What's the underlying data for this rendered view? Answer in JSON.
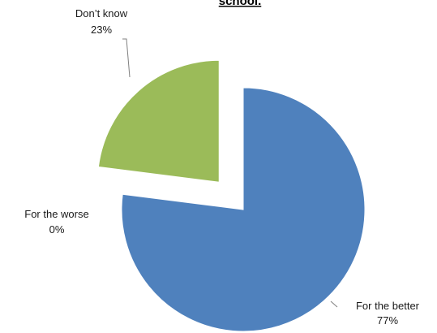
{
  "chart_data": {
    "type": "pie",
    "title": "school.",
    "slices": [
      {
        "label": "For the better",
        "value": 77,
        "value_label": "77%",
        "color": "#4f81bd",
        "exploded": true
      },
      {
        "label": "For the worse",
        "value": 0,
        "value_label": "0%",
        "color": "#c0504d",
        "exploded": true
      },
      {
        "label": "Don’t know",
        "value": 23,
        "value_label": "23%",
        "color": "#9bbb59",
        "exploded": true
      }
    ],
    "start_angle_deg": 0,
    "direction": "clockwise"
  }
}
